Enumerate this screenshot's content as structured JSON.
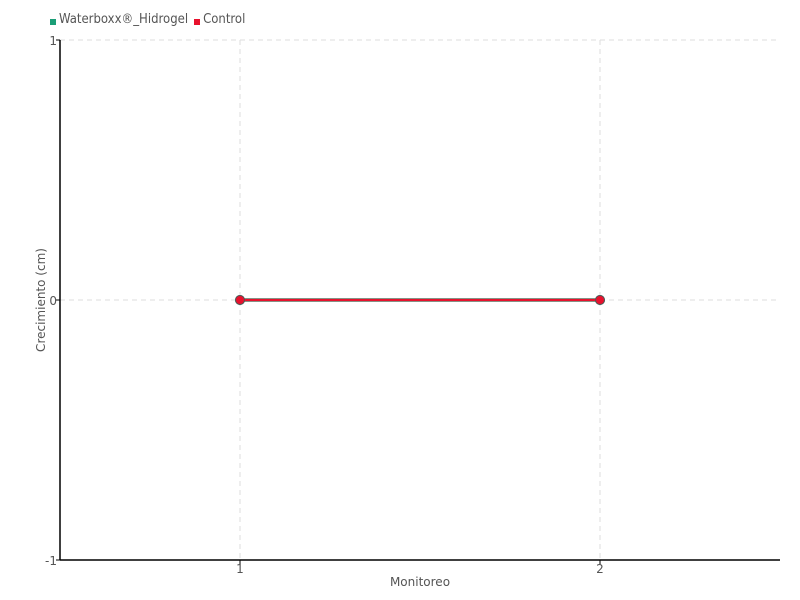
{
  "chart_data": {
    "type": "line",
    "xlabel": "Monitoreo",
    "ylabel": "Crecimiento (cm)",
    "x": [
      1,
      2
    ],
    "xlim": [
      0.5,
      2.5
    ],
    "ylim": [
      -1,
      1
    ],
    "xticks": [
      "1",
      "2"
    ],
    "yticks": [
      "-1",
      "0",
      "1"
    ],
    "grid": true,
    "legend_position": "top-left",
    "series": [
      {
        "name": "Waterboxx®_Hidrogel",
        "values": [
          0,
          0
        ],
        "color": "#1b9e77"
      },
      {
        "name": "Control",
        "values": [
          0,
          0
        ],
        "color": "#e8112d"
      }
    ]
  }
}
